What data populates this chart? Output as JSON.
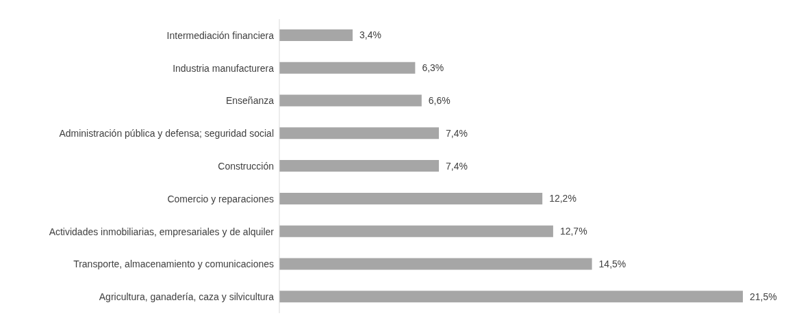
{
  "chart_data": {
    "type": "bar",
    "orientation": "horizontal",
    "categories": [
      "Intermediación financiera",
      "Industria manufacturera",
      "Enseñanza",
      "Administración pública y defensa; seguridad social",
      "Construcción",
      "Comercio y reparaciones",
      "Actividades inmobiliarias, empresariales y de alquiler",
      "Transporte, almacenamiento y comunicaciones",
      "Agricultura, ganadería, caza y silvicultura"
    ],
    "values": [
      3.4,
      6.3,
      6.6,
      7.4,
      7.4,
      12.2,
      12.7,
      14.5,
      21.5
    ],
    "value_labels": [
      "3,4%",
      "6,3%",
      "6,6%",
      "7,4%",
      "7,4%",
      "12,2%",
      "12,7%",
      "14,5%",
      "21,5%"
    ],
    "color": "#a6a6a6",
    "grid": false,
    "legend": false
  }
}
